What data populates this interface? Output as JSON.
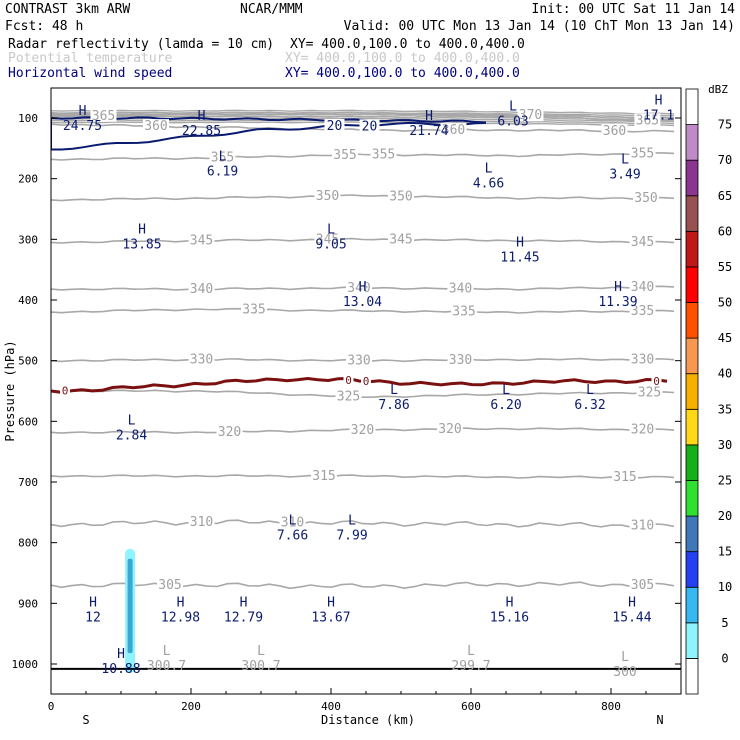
{
  "header": {
    "line1_left": "CONTRAST  3km ARW",
    "line1_mid": "NCAR/MMM",
    "line1_right": "Init: 00 UTC Sat 11 Jan 14",
    "line2_left": "Fcst:    48 h",
    "line2_right": "Valid: 00 UTC Mon 13 Jan 14 (10 ChT Mon 13 Jan 14)",
    "fields": [
      {
        "name": "Radar reflectivity (lamda = 10 cm)",
        "xy": "XY= 400.0,100.0 to 400.0,400.0",
        "color": "#000000"
      },
      {
        "name": "Potential temperature",
        "xy": "XY= 400.0,100.0 to 400.0,400.0",
        "color": "#c8c8c8"
      },
      {
        "name": "Horizontal wind speed",
        "xy": "XY= 400.0,100.0 to 400.0,400.0",
        "color": "#000080"
      }
    ]
  },
  "colors": {
    "theta": "#a8a8a8",
    "theta_label": "#a0a0a0",
    "wind": "#0a1a6e",
    "freezing": "#7a1010",
    "radar_core": "#3aa8d0",
    "radar_halo": "#8ff4ff"
  },
  "chart_data": {
    "type": "cross-section",
    "xlabel": "Distance (km)",
    "ylabel": "Pressure (hPa)",
    "xlim": [
      0,
      890
    ],
    "ylim": [
      1045,
      50
    ],
    "x_ticks": [
      0,
      200,
      400,
      600,
      800
    ],
    "x_tick_labels": [
      "0",
      "200",
      "400",
      "600",
      "800"
    ],
    "y_ticks": [
      100,
      200,
      300,
      400,
      500,
      600,
      700,
      800,
      900,
      1000
    ],
    "y_tick_labels": [
      "100",
      "200",
      "300",
      "400",
      "500",
      "600",
      "700",
      "800",
      "900",
      "1000"
    ],
    "endpoints": {
      "left": "S",
      "right": "N"
    },
    "colorbar": {
      "title": "dBZ",
      "levels": [
        "0",
        "5",
        "10",
        "15",
        "20",
        "25",
        "30",
        "35",
        "40",
        "45",
        "50",
        "55",
        "60",
        "65",
        "70",
        "75"
      ],
      "colors": [
        "#ffffff",
        "#8ff4ff",
        "#38b8f0",
        "#2540f0",
        "#3f78b8",
        "#30e030",
        "#18b018",
        "#ffd818",
        "#f8b000",
        "#f89850",
        "#ff5000",
        "#ff0000",
        "#c01818",
        "#985050",
        "#8a3590",
        "#c08ac8",
        "#ffffff"
      ]
    },
    "theta_contours": [
      {
        "label": "305",
        "p": [
          870,
          870,
          872,
          868,
          870
        ],
        "label_x": [
          170,
          845
        ]
      },
      {
        "label": "310",
        "p": [
          770,
          766,
          768,
          770,
          772
        ],
        "label_x": [
          215,
          345,
          845
        ]
      },
      {
        "label": "315",
        "p": [
          690,
          690,
          690,
          692,
          692
        ],
        "label_x": [
          390,
          820
        ]
      },
      {
        "label": "320",
        "p": [
          618,
          618,
          614,
          612,
          614
        ],
        "label_x": [
          255,
          445,
          570,
          845
        ]
      },
      {
        "label": "325",
        "p": [
          550,
          550,
          560,
          555,
          552
        ],
        "label_x": [
          425,
          855
        ]
      },
      {
        "label": "330",
        "p": [
          500,
          498,
          500,
          498,
          498
        ],
        "label_x": [
          215,
          440,
          585,
          845
        ]
      },
      {
        "label": "335",
        "p": [
          420,
          415,
          418,
          420,
          418
        ],
        "label_x": [
          290,
          590,
          845
        ]
      },
      {
        "label": "340",
        "p": [
          382,
          382,
          380,
          382,
          378
        ],
        "label_x": [
          215,
          440,
          585,
          845
        ]
      },
      {
        "label": "345",
        "p": [
          305,
          302,
          300,
          302,
          305
        ],
        "label_x": [
          215,
          395,
          500,
          845
        ]
      },
      {
        "label": "350",
        "p": [
          235,
          232,
          228,
          232,
          232
        ],
        "label_x": [
          395,
          500,
          850
        ]
      },
      {
        "label": "355",
        "p": [
          168,
          166,
          160,
          162,
          158
        ],
        "label_x": [
          245,
          420,
          475,
          845
        ]
      },
      {
        "label": "360",
        "p": [
          110,
          115,
          120,
          120,
          122
        ],
        "label_x": [
          150,
          575,
          805
        ]
      },
      {
        "label": "365",
        "p": [
          96,
          97,
          98,
          98,
          105
        ],
        "label_x": [
          75,
          852
        ]
      },
      {
        "label": "370",
        "p": [
          92,
          92,
          92,
          95,
          100
        ],
        "label_x": [
          685
        ]
      }
    ],
    "wind_contours": [
      {
        "label": "20",
        "p_top": [
          100,
          100,
          102,
          104,
          106
        ],
        "p_bottom": [
          152,
          140,
          120,
          110,
          110
        ],
        "x": [
          0,
          120,
          300,
          470,
          620
        ],
        "label_x": [
          405,
          455
        ]
      }
    ],
    "freezing_level": {
      "label": "0",
      "p": [
        550,
        548,
        544,
        540,
        535,
        530,
        532,
        536,
        540,
        536,
        534,
        533
      ],
      "x": [
        0,
        60,
        120,
        180,
        260,
        340,
        420,
        500,
        580,
        660,
        760,
        880
      ]
    },
    "reflectivity": [
      {
        "x": 113,
        "p_top": 810,
        "p_bottom": 1015,
        "dbz": 10
      }
    ],
    "wind_extrema": [
      {
        "type": "H",
        "value": "24.75",
        "x": 45,
        "p": 95
      },
      {
        "type": "H",
        "value": "22.85",
        "x": 215,
        "p": 103
      },
      {
        "type": "H",
        "value": "21.74",
        "x": 540,
        "p": 103
      },
      {
        "type": "L",
        "value": "6.03",
        "x": 660,
        "p": 88
      },
      {
        "type": "H",
        "value": "17.1",
        "x": 868,
        "p": 78
      },
      {
        "type": "L",
        "value": "6.19",
        "x": 245,
        "p": 170
      },
      {
        "type": "L",
        "value": "4.66",
        "x": 625,
        "p": 190
      },
      {
        "type": "L",
        "value": "3.49",
        "x": 820,
        "p": 175
      },
      {
        "type": "H",
        "value": "13.85",
        "x": 130,
        "p": 290
      },
      {
        "type": "L",
        "value": "9.05",
        "x": 400,
        "p": 290
      },
      {
        "type": "H",
        "value": "11.45",
        "x": 670,
        "p": 312
      },
      {
        "type": "H",
        "value": "13.04",
        "x": 445,
        "p": 385
      },
      {
        "type": "H",
        "value": "11.39",
        "x": 810,
        "p": 385
      },
      {
        "type": "L",
        "value": "7.86",
        "x": 490,
        "p": 555
      },
      {
        "type": "L",
        "value": "6.20",
        "x": 650,
        "p": 555
      },
      {
        "type": "L",
        "value": "6.32",
        "x": 770,
        "p": 555
      },
      {
        "type": "L",
        "value": "2.84",
        "x": 115,
        "p": 605
      },
      {
        "type": "L",
        "value": "7.66",
        "x": 345,
        "p": 770
      },
      {
        "type": "L",
        "value": "7.99",
        "x": 430,
        "p": 770
      },
      {
        "type": "H",
        "value": "12",
        "x": 60,
        "p": 905
      },
      {
        "type": "H",
        "value": "12.98",
        "x": 185,
        "p": 905
      },
      {
        "type": "H",
        "value": "12.79",
        "x": 275,
        "p": 905
      },
      {
        "type": "H",
        "value": "13.67",
        "x": 400,
        "p": 905
      },
      {
        "type": "H",
        "value": "15.16",
        "x": 655,
        "p": 905
      },
      {
        "type": "H",
        "value": "15.44",
        "x": 830,
        "p": 905
      },
      {
        "type": "H",
        "value": "10.88",
        "x": 100,
        "p": 990
      }
    ],
    "theta_extrema": [
      {
        "type": "L",
        "value": "300.7",
        "x": 165,
        "p": 985
      },
      {
        "type": "L",
        "value": "300.7",
        "x": 300,
        "p": 985
      },
      {
        "type": "L",
        "value": "299.7",
        "x": 600,
        "p": 985
      },
      {
        "type": "L",
        "value": "300",
        "x": 820,
        "p": 995
      }
    ]
  }
}
